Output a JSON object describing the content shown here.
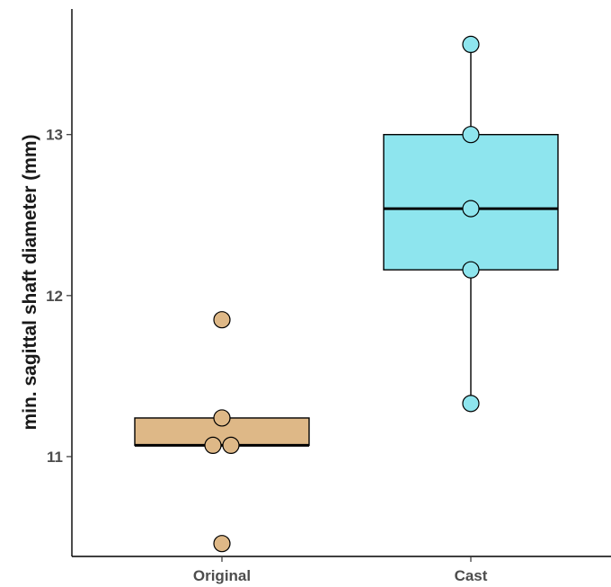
{
  "chart_data": {
    "type": "boxplot",
    "title": "",
    "xlabel": "",
    "ylabel": "min. sagittal shaft diameter (mm)",
    "ylim": [
      10.38,
      13.78
    ],
    "yticks": [
      11,
      12,
      13
    ],
    "grid": false,
    "legend": "none",
    "categories": [
      "Original",
      "Cast"
    ],
    "series": [
      {
        "category": "Original",
        "color": "#deb887",
        "box": {
          "min": 11.07,
          "q1": 11.07,
          "median": 11.07,
          "q3": 11.24,
          "max": 11.24
        },
        "outliers": [
          11.85,
          10.46
        ],
        "points": [
          11.85,
          11.24,
          11.07,
          11.07,
          10.46
        ]
      },
      {
        "category": "Cast",
        "color": "#8ee5ee",
        "box": {
          "min": 11.33,
          "q1": 12.16,
          "median": 12.54,
          "q3": 13.0,
          "max": 13.56
        },
        "outliers": [],
        "points": [
          13.56,
          13.0,
          12.54,
          12.16,
          11.33
        ]
      }
    ]
  }
}
